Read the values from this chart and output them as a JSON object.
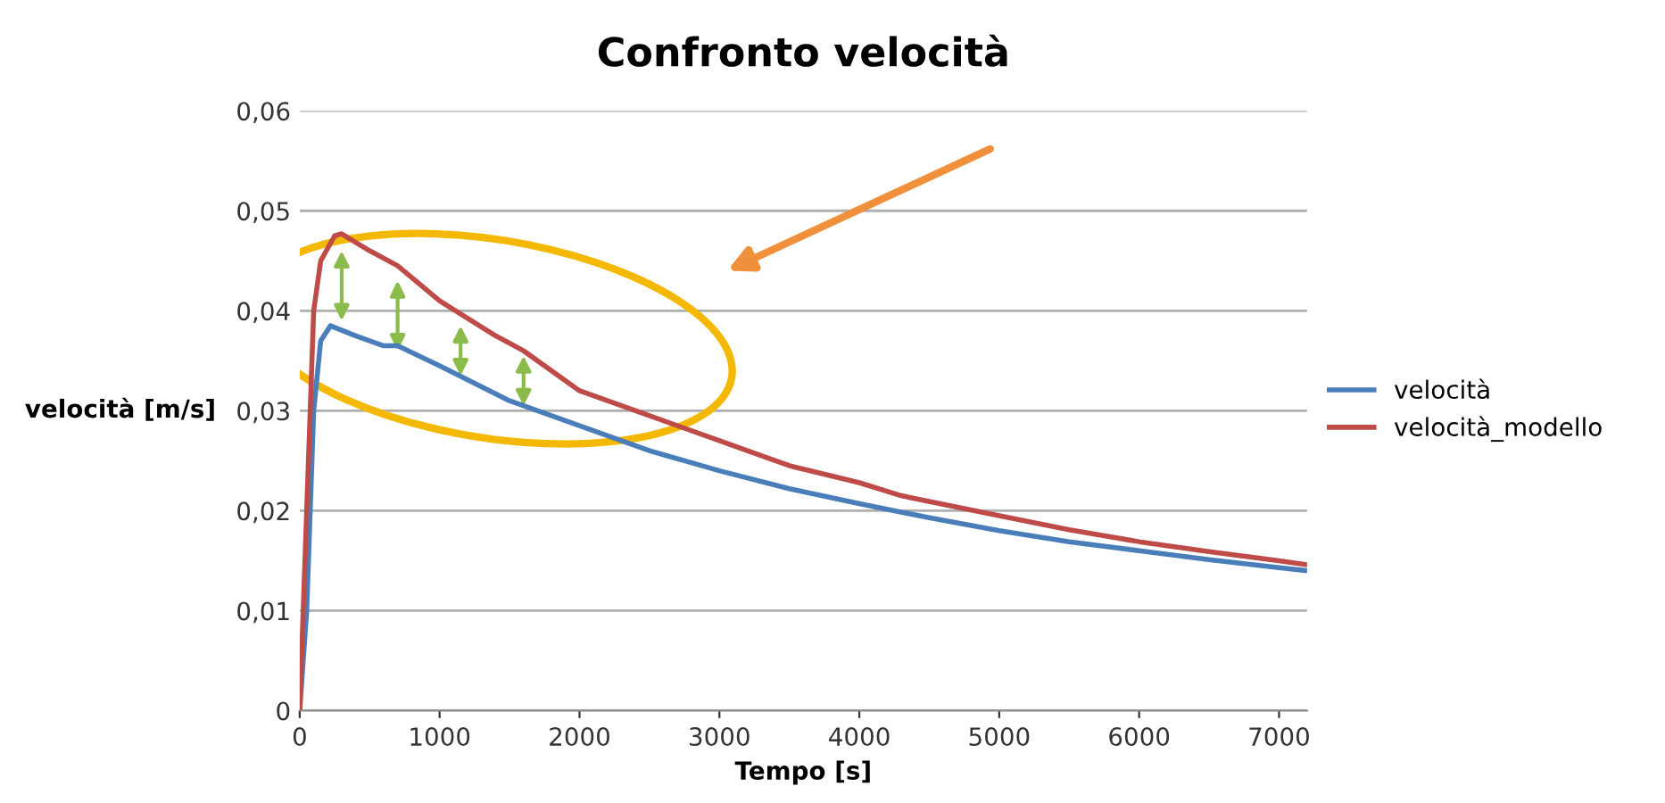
{
  "chart_data": {
    "type": "line",
    "title": "Confronto velocità",
    "xlabel": "Tempo [s]",
    "ylabel": "velocità [m/s]",
    "xlim": [
      0,
      7200
    ],
    "xticks": [
      0,
      1000,
      2000,
      3000,
      4000,
      5000,
      6000,
      7000
    ],
    "ylim": [
      0,
      0.06
    ],
    "yticks": [
      {
        "value": 0,
        "label": "0"
      },
      {
        "value": 0.01,
        "label": "0,01"
      },
      {
        "value": 0.02,
        "label": "0,02"
      },
      {
        "value": 0.03,
        "label": "0,03"
      },
      {
        "value": 0.04,
        "label": "0,04"
      },
      {
        "value": 0.05,
        "label": "0,05"
      },
      {
        "value": 0.06,
        "label": "0,06"
      }
    ],
    "grid": "y",
    "legend": "right",
    "marker": "none",
    "line_style": "solid",
    "series": [
      {
        "name": "velocità",
        "color": "#4a7ebb",
        "x": [
          0,
          50,
          100,
          150,
          220,
          400,
          600,
          700,
          1000,
          1500,
          2000,
          2500,
          3000,
          3500,
          4000,
          4500,
          5000,
          5500,
          6000,
          6500,
          7000,
          7200
        ],
        "values": [
          0,
          0.01,
          0.03,
          0.037,
          0.0385,
          0.0375,
          0.0365,
          0.0365,
          0.0345,
          0.031,
          0.0285,
          0.026,
          0.024,
          0.0222,
          0.0207,
          0.0193,
          0.018,
          0.0169,
          0.016,
          0.0151,
          0.0143,
          0.014
        ]
      },
      {
        "name": "velocità_modello",
        "color": "#be4b48",
        "x": [
          0,
          50,
          100,
          150,
          250,
          300,
          500,
          700,
          1000,
          1400,
          1600,
          2000,
          2500,
          3000,
          3500,
          4000,
          4300,
          5000,
          5500,
          6000,
          6500,
          7000,
          7200
        ],
        "values": [
          0,
          0.02,
          0.04,
          0.045,
          0.0475,
          0.0477,
          0.046,
          0.0445,
          0.041,
          0.0375,
          0.036,
          0.032,
          0.0295,
          0.027,
          0.0245,
          0.0228,
          0.0215,
          0.0195,
          0.0181,
          0.0169,
          0.0159,
          0.015,
          0.0146
        ]
      }
    ]
  }
}
